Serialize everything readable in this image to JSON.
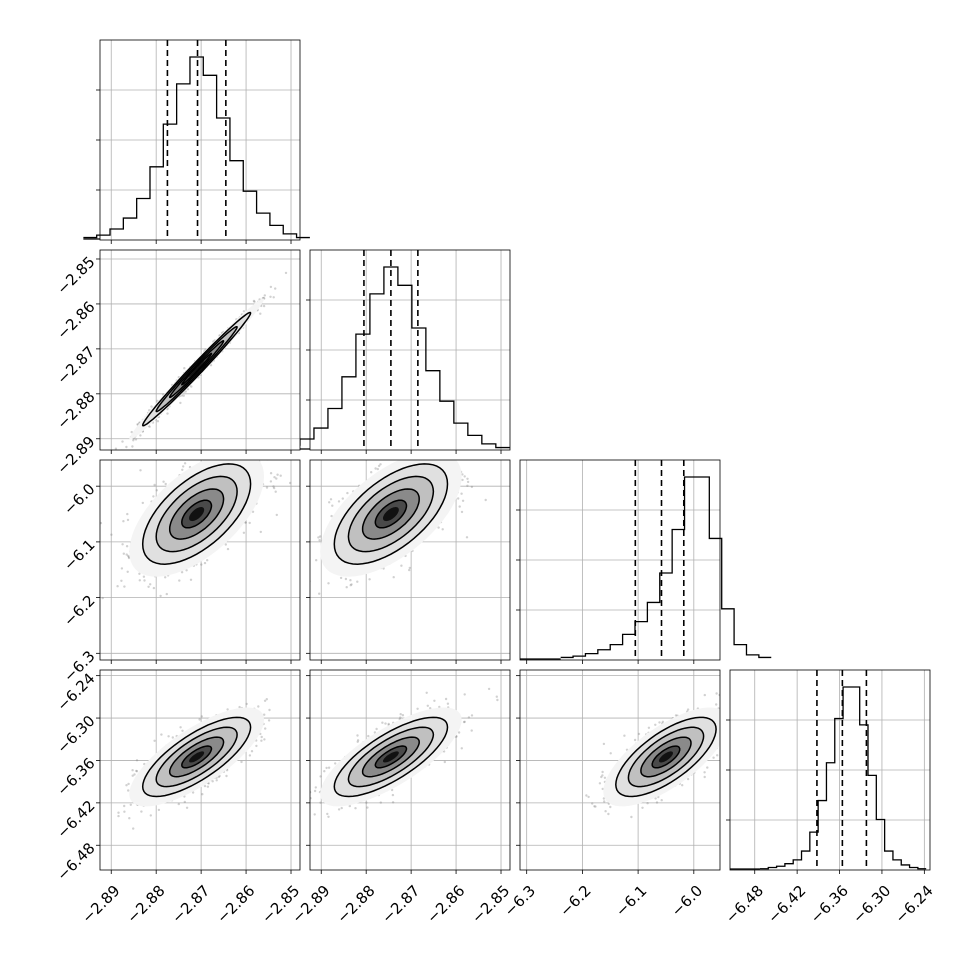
{
  "chart_data": {
    "type": "corner",
    "description": "Corner plot of 4 parameters: 1D marginal histograms on the diagonal, 2D joint scatter/density with contours below.",
    "grid": true,
    "parameters": [
      {
        "id": "p0",
        "range": [
          -2.8925,
          -2.848
        ],
        "ticks": [
          -2.89,
          -2.88,
          -2.87,
          -2.86,
          -2.85
        ],
        "tick_labels": [
          "−2.89",
          "−2.88",
          "−2.87",
          "−2.86",
          "−2.85"
        ],
        "mean": -2.871,
        "sd": 0.006,
        "quantiles": [
          -2.8775,
          -2.8708,
          -2.8645
        ],
        "hist_counts": [
          2,
          4,
          9,
          18,
          34,
          60,
          95,
          128,
          150,
          135,
          100,
          65,
          40,
          22,
          12,
          5,
          2
        ]
      },
      {
        "id": "p1",
        "range": [
          -2.8925,
          -2.848
        ],
        "ticks": [
          -2.89,
          -2.88,
          -2.87,
          -2.86,
          -2.85
        ],
        "tick_labels": [
          "−2.89",
          "−2.88",
          "−2.87",
          "−2.86",
          "−2.85"
        ],
        "mean": -2.8745,
        "sd": 0.0063,
        "quantiles": [
          -2.8805,
          -2.8745,
          -2.8685
        ],
        "hist_counts": [
          2,
          4,
          9,
          18,
          34,
          60,
          95,
          128,
          150,
          135,
          100,
          65,
          40,
          22,
          12,
          5,
          2
        ]
      },
      {
        "id": "p2",
        "range": [
          -6.312,
          -5.953
        ],
        "ticks": [
          -6.3,
          -6.2,
          -6.1,
          -6.0
        ],
        "tick_labels": [
          "−6.3",
          "−6.2",
          "−6.1",
          "−6.0"
        ],
        "mean": -6.05,
        "sd": 0.045,
        "quantiles": [
          -6.105,
          -6.058,
          -6.018
        ],
        "hist_counts": [
          2,
          3,
          5,
          8,
          12,
          20,
          30,
          45,
          68,
          102,
          143,
          143,
          95,
          40,
          12,
          4,
          2
        ]
      },
      {
        "id": "p3",
        "range": [
          -6.515,
          -6.232
        ],
        "ticks": [
          -6.48,
          -6.42,
          -6.36,
          -6.3,
          -6.24
        ],
        "tick_labels": [
          "−6.48",
          "−6.42",
          "−6.36",
          "−6.30",
          "−6.24"
        ],
        "mean": -6.355,
        "sd": 0.028,
        "quantiles": [
          -6.392,
          -6.356,
          -6.322
        ],
        "hist_counts": [
          1,
          2,
          3,
          5,
          8,
          15,
          30,
          55,
          85,
          120,
          145,
          145,
          115,
          75,
          40,
          15,
          8,
          4,
          2,
          1
        ]
      }
    ],
    "correlations": {
      "1,0": 0.99,
      "2,0": 0.6,
      "2,1": 0.6,
      "3,0": 0.75,
      "3,1": 0.75,
      "3,2": 0.7
    }
  }
}
